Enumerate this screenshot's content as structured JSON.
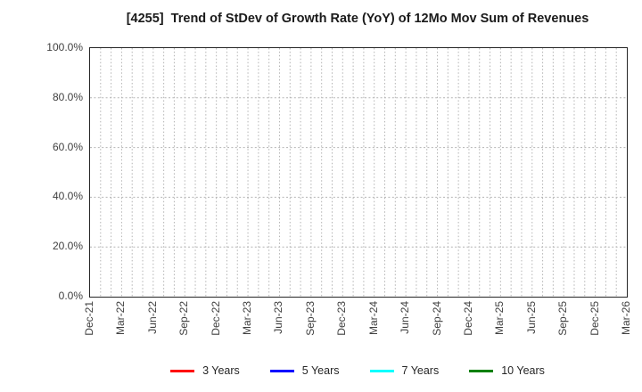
{
  "chart_data": {
    "type": "line",
    "title": "[4255]  Trend of StDev of Growth Rate (YoY) of 12Mo Mov Sum of Revenues",
    "xlabel": "",
    "ylabel": "",
    "x_tick_labels": [
      "Dec-21",
      "Mar-22",
      "Jun-22",
      "Sep-22",
      "Dec-22",
      "Mar-23",
      "Jun-23",
      "Sep-23",
      "Dec-23",
      "Mar-24",
      "Jun-24",
      "Sep-24",
      "Dec-24",
      "Mar-25",
      "Jun-25",
      "Sep-25",
      "Dec-25",
      "Mar-26"
    ],
    "y_tick_labels": [
      "0.0%",
      "20.0%",
      "40.0%",
      "60.0%",
      "80.0%",
      "100.0%"
    ],
    "ylim": [
      0,
      100
    ],
    "grid": true,
    "x_minor_gridline_interval": "monthly",
    "x_minor_intervals": 51,
    "legend_position": "bottom",
    "series": [
      {
        "name": "3 Years",
        "color": "#ff0000",
        "values": []
      },
      {
        "name": "5 Years",
        "color": "#0000ff",
        "values": []
      },
      {
        "name": "7 Years",
        "color": "#00ffff",
        "values": []
      },
      {
        "name": "10 Years",
        "color": "#008000",
        "values": []
      }
    ]
  },
  "colors": {
    "background": "#ffffff",
    "axis_border": "#262626",
    "grid": "#b3b3b3",
    "tick_label": "#404040",
    "title": "#1a1a1a"
  }
}
